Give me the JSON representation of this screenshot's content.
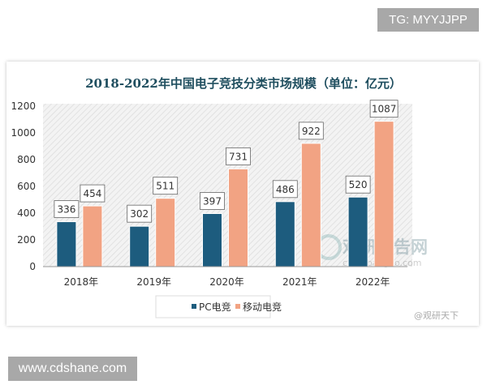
{
  "watermarks": {
    "top_right": "TG: MYYJJPP",
    "bottom_left": "www.cdshane.com",
    "chart_logo": "观研报告网",
    "chart_logo_url": "chinabaogao.com",
    "corner": "@观研天下"
  },
  "chart_data": {
    "type": "bar",
    "title": "2018-2022年中国电子竞技分类市场规模（单位：亿元）",
    "categories": [
      "2018年",
      "2019年",
      "2020年",
      "2021年",
      "2022年"
    ],
    "series": [
      {
        "name": "PC电竞",
        "values": [
          336,
          302,
          397,
          486,
          520
        ],
        "color": "#1d5c7e"
      },
      {
        "name": "移动电竞",
        "values": [
          454,
          511,
          731,
          922,
          1087
        ],
        "color": "#f2a383"
      }
    ],
    "ylim": [
      0,
      1200
    ],
    "yticks": [
      0,
      200,
      400,
      600,
      800,
      1000,
      1200
    ],
    "xlabel": "",
    "ylabel": "",
    "grid": false,
    "legend": "bottom",
    "data_labels": true
  }
}
